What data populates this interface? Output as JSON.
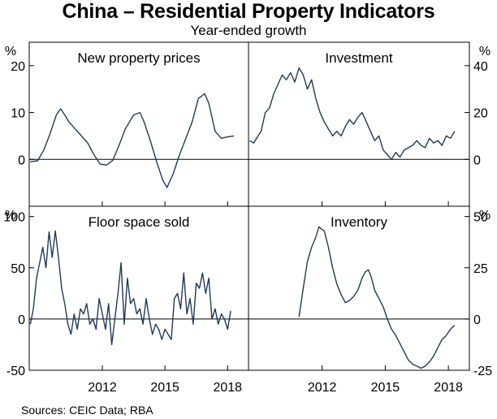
{
  "title": "China – Residential Property Indicators",
  "subtitle": "Year-ended growth",
  "source": "Sources: CEIC Data; RBA",
  "colors": {
    "line": "#1f3b57",
    "frame": "#000000",
    "zero": "#000000"
  },
  "chart_data": {
    "type": "line",
    "x_ticks": [
      "2012",
      "2015",
      "2018"
    ],
    "x_tick_values": [
      2012,
      2015,
      2018
    ],
    "xlim": [
      2008.5,
      2019.0
    ],
    "panels": [
      {
        "title": "New property prices",
        "unit": "%",
        "axis_side": "left",
        "ylim": [
          -10,
          25
        ],
        "yticks": [
          0,
          10,
          20
        ],
        "yticklabels": [
          "0",
          "10",
          "20"
        ],
        "series": {
          "name": "New property prices",
          "x": [
            2008.55,
            2008.9,
            2009.2,
            2009.5,
            2009.8,
            2010.0,
            2010.2,
            2010.4,
            2010.7,
            2011.0,
            2011.3,
            2011.6,
            2011.9,
            2012.2,
            2012.5,
            2012.8,
            2013.1,
            2013.5,
            2013.8,
            2014.0,
            2014.3,
            2014.6,
            2014.9,
            2015.1,
            2015.4,
            2015.7,
            2016.0,
            2016.3,
            2016.6,
            2016.9,
            2017.1,
            2017.4,
            2017.7,
            2018.0,
            2018.3
          ],
          "y": [
            -0.5,
            -0.3,
            2.0,
            5.5,
            9.5,
            10.8,
            9.5,
            8.0,
            6.5,
            5.0,
            3.5,
            1.0,
            -1.0,
            -1.2,
            -0.2,
            3.0,
            6.5,
            9.5,
            10.0,
            8.0,
            4.0,
            -0.5,
            -4.5,
            -6.0,
            -3.0,
            1.0,
            4.5,
            8.0,
            13.0,
            14.0,
            12.0,
            6.0,
            4.5,
            4.8,
            5.0
          ]
        }
      },
      {
        "title": "Investment",
        "unit": "%",
        "axis_side": "right",
        "ylim": [
          -20,
          50
        ],
        "yticks": [
          0,
          20,
          40
        ],
        "yticklabels": [
          "0",
          "20",
          "40"
        ],
        "series": {
          "name": "Investment",
          "x": [
            2008.55,
            2008.75,
            2008.95,
            2009.1,
            2009.3,
            2009.5,
            2009.7,
            2009.9,
            2010.1,
            2010.3,
            2010.5,
            2010.7,
            2010.9,
            2011.1,
            2011.3,
            2011.5,
            2011.7,
            2011.9,
            2012.1,
            2012.3,
            2012.5,
            2012.7,
            2012.9,
            2013.1,
            2013.3,
            2013.5,
            2013.7,
            2013.9,
            2014.1,
            2014.3,
            2014.5,
            2014.7,
            2014.9,
            2015.1,
            2015.3,
            2015.5,
            2015.7,
            2015.9,
            2016.1,
            2016.3,
            2016.5,
            2016.7,
            2016.9,
            2017.1,
            2017.3,
            2017.5,
            2017.7,
            2017.9,
            2018.1,
            2018.3
          ],
          "y": [
            8,
            7,
            10,
            12,
            20,
            22,
            28,
            32,
            36,
            34,
            37,
            33,
            39,
            36,
            30,
            34,
            26,
            20,
            16,
            13,
            10,
            12,
            10,
            14,
            17,
            15,
            18,
            20,
            16,
            12,
            8,
            10,
            4,
            2,
            0,
            3,
            1,
            4,
            5,
            6,
            8,
            6,
            5,
            9,
            7,
            8,
            6,
            10,
            9,
            12
          ]
        }
      },
      {
        "title": "Floor space sold",
        "unit": "%",
        "axis_side": "left",
        "ylim": [
          -50,
          110
        ],
        "yticks": [
          -50,
          0,
          50,
          100
        ],
        "yticklabels": [
          "-50",
          "0",
          "50",
          "100"
        ],
        "series": {
          "name": "Floor space sold",
          "x": [
            2008.55,
            2008.7,
            2008.85,
            2009.0,
            2009.15,
            2009.3,
            2009.45,
            2009.6,
            2009.75,
            2009.9,
            2010.05,
            2010.2,
            2010.35,
            2010.5,
            2010.65,
            2010.8,
            2010.95,
            2011.1,
            2011.25,
            2011.4,
            2011.55,
            2011.7,
            2011.85,
            2012.0,
            2012.15,
            2012.3,
            2012.45,
            2012.6,
            2012.75,
            2012.9,
            2013.05,
            2013.2,
            2013.35,
            2013.5,
            2013.65,
            2013.8,
            2013.95,
            2014.1,
            2014.25,
            2014.4,
            2014.55,
            2014.7,
            2014.85,
            2015.0,
            2015.15,
            2015.3,
            2015.45,
            2015.6,
            2015.75,
            2015.9,
            2016.05,
            2016.2,
            2016.35,
            2016.5,
            2016.65,
            2016.8,
            2016.95,
            2017.1,
            2017.25,
            2017.4,
            2017.55,
            2017.7,
            2017.85,
            2018.0,
            2018.15
          ],
          "y": [
            -5,
            10,
            40,
            55,
            70,
            50,
            85,
            60,
            86,
            60,
            30,
            15,
            -5,
            -15,
            5,
            -10,
            10,
            5,
            15,
            -5,
            0,
            -10,
            20,
            5,
            -10,
            15,
            -25,
            0,
            25,
            55,
            -5,
            40,
            15,
            20,
            5,
            10,
            -5,
            20,
            0,
            -15,
            -5,
            -10,
            -20,
            -10,
            -15,
            -20,
            20,
            25,
            10,
            45,
            5,
            20,
            -5,
            35,
            30,
            45,
            25,
            40,
            0,
            10,
            -5,
            5,
            0,
            -10,
            8
          ]
        }
      },
      {
        "title": "Inventory",
        "unit": "%",
        "axis_side": "right",
        "ylim": [
          -25,
          55
        ],
        "yticks": [
          -25,
          0,
          25,
          50
        ],
        "yticklabels": [
          "-25",
          "0",
          "25",
          "50"
        ],
        "series": {
          "name": "Inventory",
          "x": [
            2010.9,
            2011.1,
            2011.3,
            2011.5,
            2011.7,
            2011.85,
            2011.95,
            2012.1,
            2012.3,
            2012.5,
            2012.7,
            2012.9,
            2013.1,
            2013.3,
            2013.5,
            2013.7,
            2013.9,
            2014.05,
            2014.2,
            2014.35,
            2014.5,
            2014.7,
            2014.9,
            2015.1,
            2015.3,
            2015.5,
            2015.7,
            2015.9,
            2016.1,
            2016.3,
            2016.5,
            2016.7,
            2016.9,
            2017.1,
            2017.3,
            2017.5,
            2017.7,
            2017.9,
            2018.1,
            2018.3
          ],
          "y": [
            1,
            15,
            28,
            35,
            40,
            45,
            44,
            43,
            35,
            25,
            17,
            12,
            8,
            9,
            11,
            14,
            20,
            23,
            24,
            20,
            14,
            10,
            6,
            0,
            -5,
            -8,
            -12,
            -16,
            -20,
            -22,
            -23,
            -24,
            -23,
            -21,
            -18,
            -14,
            -10,
            -8,
            -5,
            -3
          ]
        }
      }
    ]
  }
}
